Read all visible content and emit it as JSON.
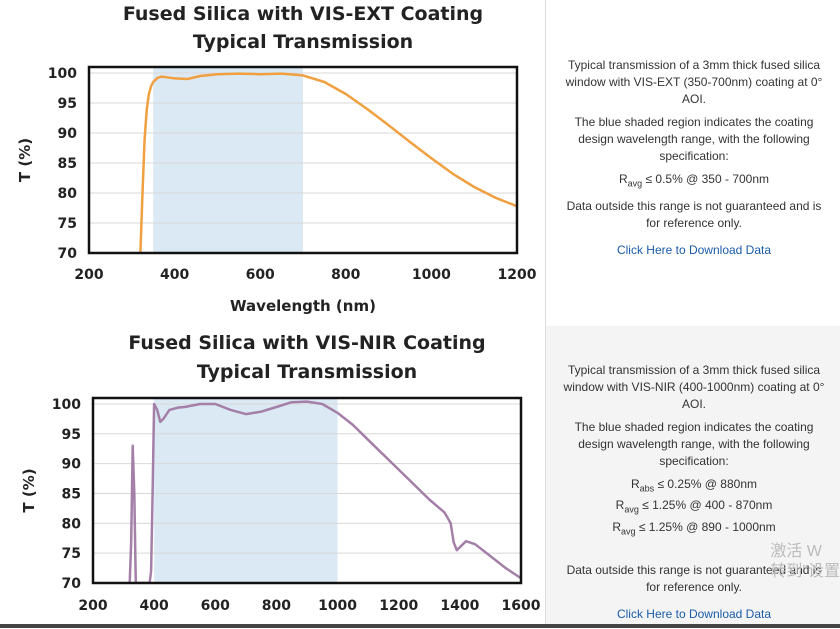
{
  "chart_data": [
    {
      "type": "line",
      "title": "Fused Silica with VIS-EXT Coating",
      "subtitle": "Typical Transmission",
      "xlabel": "Wavelength (nm)",
      "ylabel": "T (%)",
      "xlim": [
        200,
        1200
      ],
      "ylim": [
        70,
        101
      ],
      "xticks": [
        200,
        400,
        600,
        800,
        1000,
        1200
      ],
      "yticks": [
        70,
        75,
        80,
        85,
        90,
        95,
        100
      ],
      "shaded_region": [
        350,
        700
      ],
      "shaded_color": "#dbe9f5",
      "line_color": "#f0a040",
      "series": [
        {
          "x": [
            320,
            325,
            330,
            335,
            340,
            345,
            350,
            360,
            370,
            380,
            400,
            430,
            460,
            500,
            550,
            600,
            650,
            700,
            750,
            800,
            850,
            900,
            950,
            1000,
            1050,
            1100,
            1150,
            1200
          ],
          "values": [
            70,
            80,
            89,
            94,
            96.5,
            97.8,
            98.5,
            99.2,
            99.4,
            99.3,
            99.1,
            99.0,
            99.5,
            99.8,
            99.9,
            99.8,
            99.9,
            99.6,
            98.5,
            96.5,
            94.0,
            91.3,
            88.5,
            85.8,
            83.2,
            81.0,
            79.2,
            77.8
          ]
        }
      ]
    },
    {
      "type": "line",
      "title": "Fused Silica with VIS-NIR Coating",
      "subtitle": "Typical Transmission",
      "xlabel": "",
      "ylabel": "T (%)",
      "xlim": [
        200,
        1600
      ],
      "ylim": [
        70,
        101
      ],
      "xticks": [
        200,
        400,
        600,
        800,
        1000,
        1200,
        1400,
        1600
      ],
      "yticks": [
        70,
        75,
        80,
        85,
        90,
        95,
        100
      ],
      "shaded_region": [
        400,
        1000
      ],
      "shaded_color": "#dbe9f5",
      "line_color": "#a47fa8",
      "series": [
        {
          "x": [
            320,
            325,
            330,
            335,
            340,
            345,
            350,
            355,
            360,
            365,
            370,
            375,
            380,
            385,
            390,
            395,
            400,
            410,
            420,
            430,
            450,
            480,
            500,
            550,
            600,
            650,
            700,
            750,
            800,
            850,
            900,
            950,
            1000,
            1050,
            1100,
            1150,
            1200,
            1250,
            1300,
            1350,
            1370,
            1380,
            1390,
            1400,
            1420,
            1450,
            1500,
            1550,
            1600
          ],
          "values": [
            70,
            77,
            93,
            85,
            70,
            70,
            70,
            70,
            70,
            70,
            70,
            70,
            70,
            70,
            72,
            85,
            100,
            99,
            97,
            97.5,
            99,
            99.4,
            99.5,
            100,
            100,
            99,
            98.3,
            98.7,
            99.5,
            100.3,
            100.4,
            100,
            98.5,
            96.5,
            94,
            91.5,
            89,
            86.5,
            84,
            81.8,
            80,
            76.8,
            75.5,
            76,
            77,
            76.5,
            74.5,
            72.5,
            70.8
          ]
        }
      ]
    }
  ],
  "descriptions": [
    {
      "p1": "Typical transmission of a 3mm thick fused silica window with VIS-EXT (350-700nm) coating at 0° AOI.",
      "p2": "The blue shaded region indicates the coating design wavelength range, with the following specification:",
      "specs": [
        {
          "sym": "R",
          "sub": "avg",
          "text": "≤ 0.5% @ 350 - 700nm"
        }
      ],
      "p3": "Data outside this range is not guaranteed and is for reference only.",
      "link": "Click Here to Download Data"
    },
    {
      "p1": "Typical transmission of a 3mm thick fused silica window with VIS-NIR (400-1000nm) coating at 0° AOI.",
      "p2": "The blue shaded region indicates the coating design wavelength range, with the following specification:",
      "specs": [
        {
          "sym": "R",
          "sub": "abs",
          "text": "≤ 0.25% @ 880nm"
        },
        {
          "sym": "R",
          "sub": "avg",
          "text": "≤ 1.25% @ 400 - 870nm"
        },
        {
          "sym": "R",
          "sub": "avg",
          "text": "≤ 1.25% @ 890 - 1000nm"
        }
      ],
      "p3": "Data outside this range is not guaranteed and is for reference only.",
      "link": "Click Here to Download Data"
    }
  ],
  "watermark": {
    "line1": "激活 W",
    "line2": "转到\"设置"
  }
}
